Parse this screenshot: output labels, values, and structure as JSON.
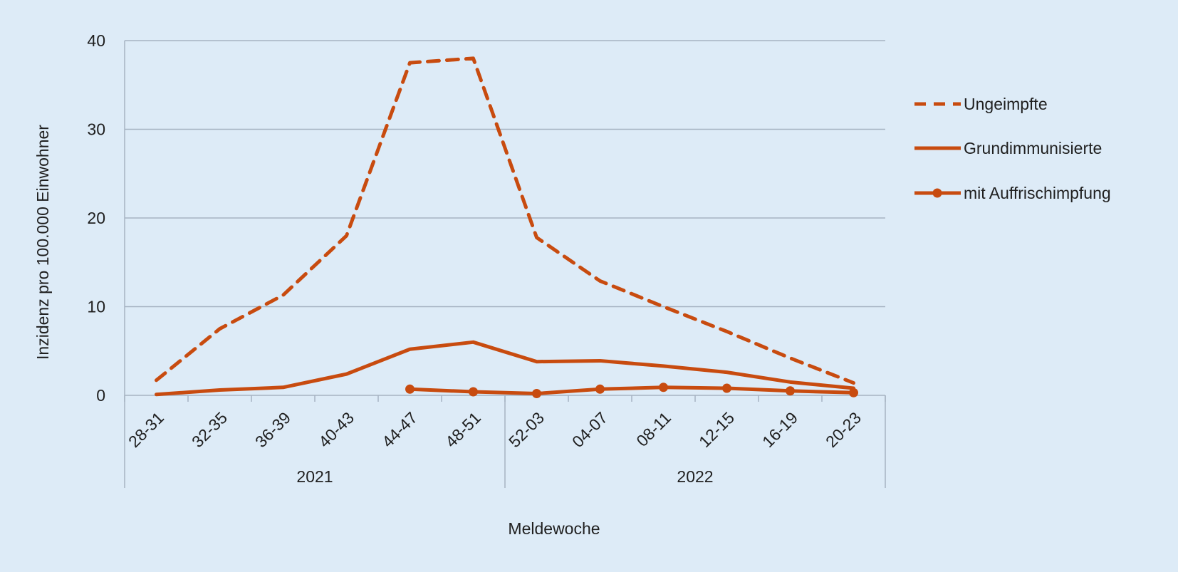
{
  "chart_data": {
    "type": "line",
    "title": "",
    "xlabel": "Meldewoche",
    "ylabel": "Inzidenz pro 100.000 Einwohner",
    "ylim": [
      0,
      40
    ],
    "yticks": [
      0,
      10,
      20,
      30,
      40
    ],
    "grid": true,
    "legend_position": "right",
    "categories": [
      "28-31",
      "32-35",
      "36-39",
      "40-43",
      "44-47",
      "48-51",
      "52-03",
      "04-07",
      "08-11",
      "12-15",
      "16-19",
      "20-23"
    ],
    "year_groups": [
      {
        "label": "2021",
        "from": 0,
        "to": 5
      },
      {
        "label": "2022",
        "from": 6,
        "to": 11
      }
    ],
    "series": [
      {
        "name": "Ungeimpfte",
        "style": "dashed",
        "color": "#c84b0f",
        "values": [
          1.7,
          7.5,
          11.3,
          18.0,
          37.5,
          38.0,
          17.8,
          12.9,
          10.0,
          7.2,
          4.2,
          1.4
        ]
      },
      {
        "name": "Grundimmunisierte",
        "style": "solid",
        "color": "#c84b0f",
        "values": [
          0.1,
          0.6,
          0.9,
          2.4,
          5.2,
          6.0,
          3.8,
          3.9,
          3.3,
          2.6,
          1.5,
          0.8
        ]
      },
      {
        "name": "mit Auffrischimpfung",
        "style": "solid-marker",
        "color": "#c84b0f",
        "values": [
          null,
          null,
          null,
          null,
          0.7,
          0.4,
          0.2,
          0.7,
          0.9,
          0.8,
          0.5,
          0.3
        ]
      }
    ]
  }
}
